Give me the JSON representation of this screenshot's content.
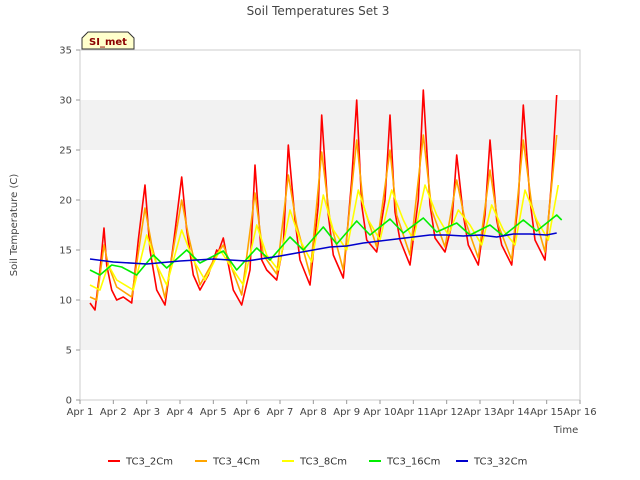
{
  "chart_data": {
    "type": "line",
    "title": "Soil Temperatures Set 3",
    "xlabel": "Time",
    "ylabel": "Soil Temperature (C)",
    "ylim": [
      0,
      35
    ],
    "yticks": [
      0,
      5,
      10,
      15,
      20,
      25,
      30,
      35
    ],
    "xlim": [
      1,
      16
    ],
    "xticks": [
      {
        "value": 1,
        "label": "Apr 1"
      },
      {
        "value": 2,
        "label": "Apr 2"
      },
      {
        "value": 3,
        "label": "Apr 3"
      },
      {
        "value": 4,
        "label": "Apr 4"
      },
      {
        "value": 5,
        "label": "Apr 5"
      },
      {
        "value": 6,
        "label": "Apr 6"
      },
      {
        "value": 7,
        "label": "Apr 7"
      },
      {
        "value": 8,
        "label": "Apr 8"
      },
      {
        "value": 9,
        "label": "Apr 9"
      },
      {
        "value": 10,
        "label": "Apr 10"
      },
      {
        "value": 11,
        "label": "Apr 11"
      },
      {
        "value": 12,
        "label": "Apr 12"
      },
      {
        "value": 13,
        "label": "Apr 13"
      },
      {
        "value": 14,
        "label": "Apr 14"
      },
      {
        "value": 15,
        "label": "Apr 15"
      },
      {
        "value": 16,
        "label": "Apr 16"
      }
    ],
    "grid": "horizontal-bands",
    "legend_position": "bottom",
    "station_label": "SI_met",
    "series": [
      {
        "name": "TC3_2Cm",
        "color": "#ff0000",
        "x": [
          1.3,
          1.45,
          1.6,
          1.72,
          1.8,
          1.95,
          2.1,
          2.3,
          2.55,
          2.75,
          2.95,
          3.1,
          3.3,
          3.55,
          3.8,
          4.05,
          4.2,
          4.4,
          4.6,
          4.85,
          5.1,
          5.15,
          5.3,
          5.6,
          5.85,
          6.1,
          6.25,
          6.45,
          6.6,
          6.9,
          7.1,
          7.25,
          7.45,
          7.6,
          7.9,
          8.15,
          8.25,
          8.45,
          8.6,
          8.9,
          9.15,
          9.3,
          9.45,
          9.6,
          9.9,
          10.15,
          10.3,
          10.45,
          10.6,
          10.9,
          11.15,
          11.3,
          11.5,
          11.65,
          11.95,
          12.15,
          12.3,
          12.5,
          12.65,
          12.95,
          13.15,
          13.3,
          13.5,
          13.65,
          13.95,
          14.15,
          14.3,
          14.5,
          14.65,
          14.95,
          15.15,
          15.3
        ],
        "y": [
          9.7,
          9.0,
          13.0,
          17.2,
          13.5,
          11.0,
          10.0,
          10.3,
          9.7,
          16.0,
          21.5,
          15.0,
          11.0,
          9.5,
          15.5,
          22.3,
          17.0,
          12.5,
          11.0,
          12.5,
          15.0,
          14.8,
          16.2,
          11.0,
          9.5,
          13.0,
          23.5,
          14.0,
          13.0,
          12.0,
          15.5,
          25.5,
          18.0,
          14.0,
          11.5,
          19.5,
          28.5,
          18.5,
          14.5,
          12.2,
          22.0,
          30.0,
          19.5,
          16.0,
          14.8,
          20.0,
          28.5,
          18.8,
          16.0,
          13.5,
          20.0,
          31.0,
          19.5,
          16.2,
          14.8,
          17.5,
          24.5,
          18.5,
          15.5,
          13.5,
          18.5,
          26.0,
          18.0,
          15.5,
          13.5,
          20.0,
          29.5,
          20.0,
          16.0,
          14.0,
          22.0,
          30.5
        ]
      },
      {
        "name": "TC3_4Cm",
        "color": "#ffa500",
        "x": [
          1.3,
          1.5,
          1.72,
          1.85,
          2.1,
          2.55,
          2.95,
          3.15,
          3.55,
          4.05,
          4.25,
          4.6,
          5.15,
          5.3,
          5.85,
          6.25,
          6.5,
          6.9,
          7.25,
          7.5,
          7.9,
          8.25,
          8.5,
          8.9,
          9.3,
          9.5,
          9.9,
          10.3,
          10.5,
          10.9,
          11.3,
          11.55,
          11.95,
          12.3,
          12.55,
          12.95,
          13.3,
          13.55,
          13.95,
          14.3,
          14.55,
          14.95,
          15.3
        ],
        "y": [
          10.3,
          10.0,
          15.5,
          13.5,
          11.3,
          10.3,
          19.2,
          15.5,
          10.2,
          20.0,
          16.5,
          11.5,
          14.8,
          15.5,
          10.5,
          20.7,
          14.5,
          12.6,
          22.5,
          17.5,
          12.5,
          24.8,
          18.0,
          13.0,
          26.0,
          19.5,
          15.3,
          25.0,
          18.5,
          14.5,
          26.5,
          19.0,
          15.3,
          22.0,
          18.0,
          14.2,
          23.0,
          17.5,
          14.0,
          26.0,
          19.5,
          14.8,
          26.5
        ]
      },
      {
        "name": "TC3_8Cm",
        "color": "#ffff00",
        "x": [
          1.3,
          1.6,
          1.85,
          2.1,
          2.6,
          3.0,
          3.3,
          3.6,
          4.05,
          4.4,
          4.75,
          5.2,
          5.5,
          5.9,
          6.3,
          6.6,
          6.95,
          7.3,
          7.6,
          7.95,
          8.3,
          8.6,
          9.0,
          9.35,
          9.65,
          10.0,
          10.35,
          10.7,
          11.0,
          11.35,
          11.7,
          12.05,
          12.35,
          12.7,
          13.05,
          13.35,
          13.7,
          14.05,
          14.35,
          14.7,
          15.05,
          15.35
        ],
        "y": [
          11.5,
          11.0,
          13.5,
          12.0,
          11.0,
          16.5,
          13.5,
          11.5,
          17.0,
          14.0,
          12.0,
          15.0,
          13.5,
          11.5,
          17.5,
          14.5,
          13.0,
          19.0,
          16.0,
          13.8,
          20.5,
          17.0,
          15.0,
          21.0,
          18.0,
          16.0,
          21.0,
          18.0,
          16.0,
          21.5,
          18.5,
          16.5,
          19.0,
          17.5,
          15.5,
          19.5,
          17.0,
          15.5,
          21.0,
          18.0,
          16.0,
          21.5
        ]
      },
      {
        "name": "TC3_16Cm",
        "color": "#00ee00",
        "x": [
          1.3,
          1.6,
          1.95,
          2.25,
          2.7,
          3.2,
          3.6,
          4.2,
          4.6,
          5.3,
          5.7,
          6.3,
          6.7,
          7.3,
          7.7,
          8.3,
          8.7,
          9.3,
          9.7,
          10.3,
          10.7,
          11.3,
          11.7,
          12.3,
          12.7,
          13.3,
          13.7,
          14.3,
          14.7,
          15.3,
          15.45
        ],
        "y": [
          13.0,
          12.5,
          13.5,
          13.3,
          12.5,
          14.5,
          13.2,
          15.0,
          13.7,
          14.9,
          13.0,
          15.2,
          14.0,
          16.3,
          15.0,
          17.3,
          15.6,
          17.9,
          16.5,
          18.1,
          16.7,
          18.2,
          16.8,
          17.7,
          16.5,
          17.5,
          16.4,
          18.0,
          16.9,
          18.5,
          18.0
        ]
      },
      {
        "name": "TC3_32Cm",
        "color": "#0000cc",
        "x": [
          1.3,
          2.0,
          3.0,
          4.0,
          5.0,
          6.0,
          7.0,
          7.5,
          8.0,
          8.5,
          9.0,
          9.5,
          10.0,
          10.5,
          11.0,
          11.5,
          12.0,
          12.5,
          13.0,
          13.5,
          14.0,
          14.5,
          15.0,
          15.3
        ],
        "y": [
          14.1,
          13.8,
          13.6,
          13.9,
          14.1,
          13.9,
          14.4,
          14.7,
          15.0,
          15.3,
          15.4,
          15.7,
          15.9,
          16.1,
          16.3,
          16.5,
          16.5,
          16.4,
          16.5,
          16.3,
          16.6,
          16.6,
          16.5,
          16.7
        ]
      }
    ]
  }
}
